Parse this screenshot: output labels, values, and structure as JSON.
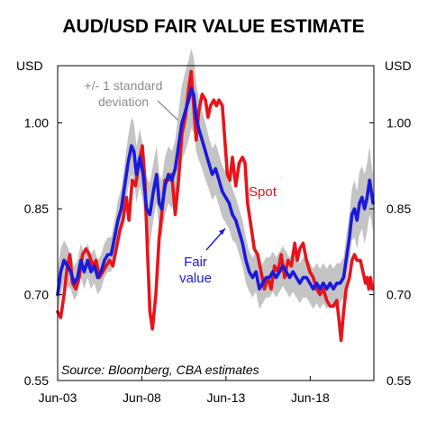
{
  "chart_data": {
    "type": "line",
    "title": "AUD/USD FAIR VALUE ESTIMATE",
    "unit_left": "USD",
    "unit_right": "USD",
    "x_tick_labels": [
      "Jun-03",
      "Jun-08",
      "Jun-13",
      "Jun-18"
    ],
    "x_ticks": [
      2003.42,
      2008.42,
      2013.42,
      2018.42
    ],
    "xlim": [
      2003.42,
      2022.2
    ],
    "ylim": [
      0.55,
      1.1
    ],
    "y_ticks": [
      0.55,
      0.7,
      0.85,
      1.0
    ],
    "y_tick_labels": [
      "0.55",
      "0.70",
      "0.85",
      "1.00"
    ],
    "grid": false,
    "source": "Source: Bloomberg, CBA estimates",
    "annotations": {
      "band_label": [
        "+/- 1 standard",
        "deviation"
      ],
      "spot_label": "Spot",
      "fair_value_label": [
        "Fair",
        "value"
      ]
    },
    "series": [
      {
        "name": "Spot",
        "color": "#e8141b",
        "points": [
          [
            2003.42,
            0.67
          ],
          [
            2003.6,
            0.66
          ],
          [
            2003.8,
            0.7
          ],
          [
            2004.0,
            0.75
          ],
          [
            2004.15,
            0.77
          ],
          [
            2004.3,
            0.72
          ],
          [
            2004.5,
            0.71
          ],
          [
            2004.7,
            0.73
          ],
          [
            2004.9,
            0.77
          ],
          [
            2005.1,
            0.78
          ],
          [
            2005.3,
            0.77
          ],
          [
            2005.5,
            0.75
          ],
          [
            2005.7,
            0.76
          ],
          [
            2005.9,
            0.73
          ],
          [
            2006.1,
            0.74
          ],
          [
            2006.3,
            0.75
          ],
          [
            2006.5,
            0.76
          ],
          [
            2006.7,
            0.75
          ],
          [
            2006.9,
            0.78
          ],
          [
            2007.1,
            0.81
          ],
          [
            2007.3,
            0.83
          ],
          [
            2007.5,
            0.87
          ],
          [
            2007.65,
            0.83
          ],
          [
            2007.85,
            0.9
          ],
          [
            2008.05,
            0.89
          ],
          [
            2008.25,
            0.93
          ],
          [
            2008.45,
            0.96
          ],
          [
            2008.6,
            0.9
          ],
          [
            2008.75,
            0.78
          ],
          [
            2008.9,
            0.67
          ],
          [
            2009.05,
            0.64
          ],
          [
            2009.25,
            0.7
          ],
          [
            2009.45,
            0.8
          ],
          [
            2009.6,
            0.84
          ],
          [
            2009.8,
            0.9
          ],
          [
            2010.0,
            0.9
          ],
          [
            2010.2,
            0.91
          ],
          [
            2010.4,
            0.84
          ],
          [
            2010.6,
            0.9
          ],
          [
            2010.8,
            0.98
          ],
          [
            2011.0,
            1.01
          ],
          [
            2011.2,
            1.06
          ],
          [
            2011.35,
            1.09
          ],
          [
            2011.5,
            1.03
          ],
          [
            2011.65,
            0.97
          ],
          [
            2011.8,
            1.02
          ],
          [
            2012.0,
            1.05
          ],
          [
            2012.2,
            1.04
          ],
          [
            2012.35,
            1.01
          ],
          [
            2012.5,
            1.03
          ],
          [
            2012.7,
            1.04
          ],
          [
            2012.85,
            1.03
          ],
          [
            2013.0,
            1.04
          ],
          [
            2013.2,
            1.03
          ],
          [
            2013.35,
            0.97
          ],
          [
            2013.5,
            0.91
          ],
          [
            2013.65,
            0.9
          ],
          [
            2013.8,
            0.94
          ],
          [
            2014.0,
            0.89
          ],
          [
            2014.2,
            0.93
          ],
          [
            2014.4,
            0.94
          ],
          [
            2014.55,
            0.93
          ],
          [
            2014.7,
            0.86
          ],
          [
            2014.9,
            0.82
          ],
          [
            2015.1,
            0.78
          ],
          [
            2015.3,
            0.77
          ],
          [
            2015.5,
            0.74
          ],
          [
            2015.7,
            0.71
          ],
          [
            2015.9,
            0.73
          ],
          [
            2016.1,
            0.71
          ],
          [
            2016.3,
            0.75
          ],
          [
            2016.5,
            0.74
          ],
          [
            2016.7,
            0.77
          ],
          [
            2016.9,
            0.73
          ],
          [
            2017.1,
            0.76
          ],
          [
            2017.3,
            0.75
          ],
          [
            2017.5,
            0.79
          ],
          [
            2017.65,
            0.76
          ],
          [
            2017.8,
            0.78
          ],
          [
            2018.0,
            0.79
          ],
          [
            2018.2,
            0.76
          ],
          [
            2018.4,
            0.74
          ],
          [
            2018.6,
            0.73
          ],
          [
            2018.8,
            0.71
          ],
          [
            2019.0,
            0.7
          ],
          [
            2019.2,
            0.71
          ],
          [
            2019.4,
            0.69
          ],
          [
            2019.6,
            0.68
          ],
          [
            2019.8,
            0.68
          ],
          [
            2020.0,
            0.69
          ],
          [
            2020.15,
            0.65
          ],
          [
            2020.25,
            0.62
          ],
          [
            2020.4,
            0.67
          ],
          [
            2020.55,
            0.71
          ],
          [
            2020.75,
            0.73
          ],
          [
            2020.9,
            0.76
          ],
          [
            2021.05,
            0.77
          ],
          [
            2021.2,
            0.76
          ],
          [
            2021.4,
            0.76
          ],
          [
            2021.55,
            0.74
          ],
          [
            2021.7,
            0.72
          ],
          [
            2021.8,
            0.73
          ],
          [
            2021.9,
            0.71
          ],
          [
            2022.0,
            0.73
          ],
          [
            2022.1,
            0.71
          ]
        ]
      },
      {
        "name": "Fair value",
        "color": "#1a1adc",
        "points": [
          [
            2003.42,
            0.7
          ],
          [
            2003.6,
            0.74
          ],
          [
            2003.8,
            0.76
          ],
          [
            2004.0,
            0.75
          ],
          [
            2004.2,
            0.74
          ],
          [
            2004.4,
            0.72
          ],
          [
            2004.6,
            0.73
          ],
          [
            2004.8,
            0.76
          ],
          [
            2005.0,
            0.74
          ],
          [
            2005.2,
            0.76
          ],
          [
            2005.4,
            0.74
          ],
          [
            2005.6,
            0.75
          ],
          [
            2005.8,
            0.73
          ],
          [
            2006.0,
            0.74
          ],
          [
            2006.2,
            0.76
          ],
          [
            2006.4,
            0.77
          ],
          [
            2006.6,
            0.77
          ],
          [
            2006.8,
            0.8
          ],
          [
            2007.0,
            0.83
          ],
          [
            2007.2,
            0.85
          ],
          [
            2007.4,
            0.89
          ],
          [
            2007.6,
            0.93
          ],
          [
            2007.8,
            0.96
          ],
          [
            2007.95,
            0.95
          ],
          [
            2008.1,
            0.91
          ],
          [
            2008.3,
            0.94
          ],
          [
            2008.5,
            0.91
          ],
          [
            2008.7,
            0.85
          ],
          [
            2008.9,
            0.84
          ],
          [
            2009.1,
            0.88
          ],
          [
            2009.3,
            0.91
          ],
          [
            2009.45,
            0.86
          ],
          [
            2009.6,
            0.85
          ],
          [
            2009.8,
            0.89
          ],
          [
            2010.0,
            0.91
          ],
          [
            2010.2,
            0.9
          ],
          [
            2010.4,
            0.92
          ],
          [
            2010.6,
            0.96
          ],
          [
            2010.8,
            1.0
          ],
          [
            2011.0,
            1.02
          ],
          [
            2011.2,
            1.04
          ],
          [
            2011.35,
            1.06
          ],
          [
            2011.5,
            1.05
          ],
          [
            2011.65,
            1.01
          ],
          [
            2011.8,
            0.99
          ],
          [
            2012.0,
            0.97
          ],
          [
            2012.2,
            0.95
          ],
          [
            2012.4,
            0.93
          ],
          [
            2012.6,
            0.91
          ],
          [
            2012.8,
            0.92
          ],
          [
            2013.0,
            0.9
          ],
          [
            2013.2,
            0.88
          ],
          [
            2013.4,
            0.87
          ],
          [
            2013.6,
            0.86
          ],
          [
            2013.8,
            0.84
          ],
          [
            2014.0,
            0.83
          ],
          [
            2014.2,
            0.81
          ],
          [
            2014.4,
            0.79
          ],
          [
            2014.6,
            0.76
          ],
          [
            2014.8,
            0.74
          ],
          [
            2015.0,
            0.73
          ],
          [
            2015.2,
            0.74
          ],
          [
            2015.4,
            0.71
          ],
          [
            2015.6,
            0.72
          ],
          [
            2015.8,
            0.73
          ],
          [
            2016.0,
            0.73
          ],
          [
            2016.2,
            0.74
          ],
          [
            2016.4,
            0.73
          ],
          [
            2016.6,
            0.74
          ],
          [
            2016.8,
            0.75
          ],
          [
            2017.0,
            0.74
          ],
          [
            2017.2,
            0.73
          ],
          [
            2017.4,
            0.74
          ],
          [
            2017.6,
            0.73
          ],
          [
            2017.8,
            0.72
          ],
          [
            2018.0,
            0.73
          ],
          [
            2018.2,
            0.73
          ],
          [
            2018.4,
            0.72
          ],
          [
            2018.6,
            0.71
          ],
          [
            2018.8,
            0.72
          ],
          [
            2019.0,
            0.71
          ],
          [
            2019.2,
            0.72
          ],
          [
            2019.4,
            0.71
          ],
          [
            2019.6,
            0.72
          ],
          [
            2019.8,
            0.71
          ],
          [
            2020.0,
            0.72
          ],
          [
            2020.2,
            0.72
          ],
          [
            2020.4,
            0.73
          ],
          [
            2020.6,
            0.77
          ],
          [
            2020.75,
            0.8
          ],
          [
            2020.9,
            0.84
          ],
          [
            2021.05,
            0.85
          ],
          [
            2021.2,
            0.83
          ],
          [
            2021.35,
            0.86
          ],
          [
            2021.5,
            0.87
          ],
          [
            2021.65,
            0.85
          ],
          [
            2021.8,
            0.87
          ],
          [
            2021.95,
            0.9
          ],
          [
            2022.05,
            0.88
          ],
          [
            2022.15,
            0.86
          ]
        ]
      }
    ],
    "band": {
      "color": "#bdbdbd",
      "description": "+/- 1 standard deviation around fair value",
      "half_width": [
        0.045,
        0.04,
        0.035,
        0.035,
        0.03,
        0.03,
        0.03,
        0.03,
        0.03,
        0.03,
        0.03,
        0.03,
        0.03,
        0.03,
        0.03,
        0.03,
        0.03,
        0.03,
        0.035,
        0.035,
        0.04,
        0.045,
        0.05,
        0.05,
        0.05,
        0.05,
        0.05,
        0.055,
        0.055,
        0.05,
        0.05,
        0.05,
        0.05,
        0.05,
        0.05,
        0.05,
        0.05,
        0.06,
        0.065,
        0.07,
        0.07,
        0.07,
        0.065,
        0.06,
        0.055,
        0.05,
        0.05,
        0.045,
        0.045,
        0.045,
        0.045,
        0.045,
        0.045,
        0.045,
        0.045,
        0.04,
        0.04,
        0.04,
        0.04,
        0.035,
        0.035,
        0.035,
        0.035,
        0.035,
        0.035,
        0.035,
        0.035,
        0.035,
        0.035,
        0.035,
        0.035,
        0.035,
        0.035,
        0.035,
        0.035,
        0.035,
        0.035,
        0.035,
        0.035,
        0.035,
        0.035,
        0.035,
        0.035,
        0.035,
        0.035,
        0.035,
        0.035,
        0.035,
        0.04,
        0.04,
        0.045,
        0.05,
        0.05,
        0.055,
        0.055,
        0.06,
        0.06,
        0.06,
        0.05,
        0.05
      ]
    }
  }
}
